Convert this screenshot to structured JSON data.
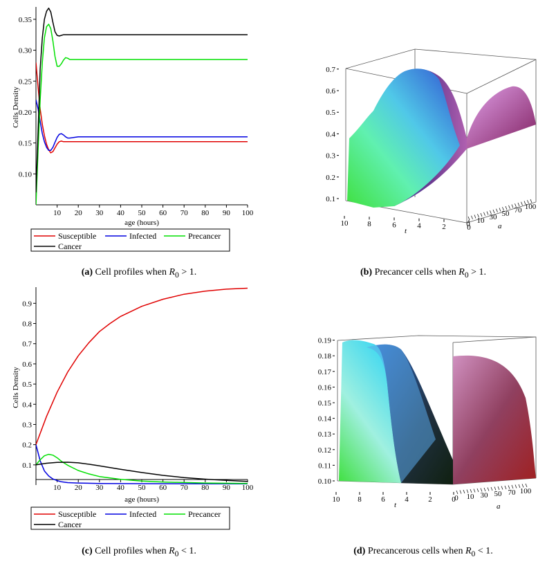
{
  "chart_data": [
    {
      "id": "a",
      "type": "line",
      "xlabel": "age (hours)",
      "ylabel": "Cells Density",
      "xlim": [
        0,
        100
      ],
      "ylim": [
        0.05,
        0.37
      ],
      "xticks": [
        "10",
        "20",
        "30",
        "40",
        "50",
        "60",
        "70",
        "80",
        "90",
        "100"
      ],
      "yticks": [
        "0.10",
        "0.15",
        "0.20",
        "0.25",
        "0.30",
        "0.35"
      ],
      "ytick_values": [
        0.1,
        0.15,
        0.2,
        0.25,
        0.3,
        0.35
      ],
      "xtick_values": [
        10,
        20,
        30,
        40,
        50,
        60,
        70,
        80,
        90,
        100
      ],
      "series": [
        {
          "name": "Susceptible",
          "color": "#e00000",
          "x": [
            0,
            1,
            2,
            3,
            4,
            5,
            6,
            7,
            8,
            9,
            10,
            11,
            12,
            13,
            15,
            20,
            30,
            50,
            100
          ],
          "y": [
            0.28,
            0.24,
            0.205,
            0.18,
            0.162,
            0.148,
            0.139,
            0.134,
            0.136,
            0.142,
            0.148,
            0.152,
            0.153,
            0.152,
            0.152,
            0.152,
            0.152,
            0.152,
            0.152
          ]
        },
        {
          "name": "Infected",
          "color": "#0000e0",
          "x": [
            0,
            1,
            2,
            3,
            4,
            5,
            6,
            7,
            8,
            9,
            10,
            11,
            12,
            13,
            14,
            15,
            16,
            18,
            20,
            25,
            100
          ],
          "y": [
            0.22,
            0.205,
            0.185,
            0.165,
            0.152,
            0.143,
            0.138,
            0.138,
            0.143,
            0.151,
            0.159,
            0.164,
            0.165,
            0.163,
            0.16,
            0.158,
            0.158,
            0.159,
            0.16,
            0.16,
            0.16
          ]
        },
        {
          "name": "Precancer",
          "color": "#00e000",
          "x": [
            0,
            1,
            2,
            3,
            4,
            5,
            6,
            7,
            8,
            9,
            10,
            11,
            12,
            13,
            14,
            15,
            16,
            18,
            20,
            25,
            100
          ],
          "y": [
            0.05,
            0.14,
            0.22,
            0.28,
            0.32,
            0.338,
            0.342,
            0.335,
            0.315,
            0.29,
            0.274,
            0.274,
            0.278,
            0.284,
            0.288,
            0.287,
            0.285,
            0.285,
            0.285,
            0.285,
            0.285
          ]
        },
        {
          "name": "Cancer",
          "color": "#000000",
          "x": [
            0,
            1,
            2,
            3,
            4,
            5,
            6,
            7,
            8,
            9,
            10,
            11,
            12,
            13,
            15,
            20,
            100
          ],
          "y": [
            0.07,
            0.17,
            0.27,
            0.32,
            0.35,
            0.363,
            0.368,
            0.362,
            0.345,
            0.33,
            0.324,
            0.323,
            0.324,
            0.325,
            0.325,
            0.325,
            0.325
          ]
        }
      ],
      "legend": [
        "Susceptible",
        "Infected",
        "Precancer",
        "Cancer"
      ],
      "caption": {
        "label": "(a)",
        "text": "Cell profiles when",
        "sym": "R",
        "sub": "0",
        "rel": "> 1."
      }
    },
    {
      "id": "b",
      "type": "surface",
      "xlabel": "t",
      "ylabel": "a",
      "zticks": [
        "0.1",
        "0.2",
        "0.3",
        "0.4",
        "0.5",
        "0.6",
        "0.7"
      ],
      "tticks": [
        "10",
        "8",
        "6",
        "4",
        "2",
        "0"
      ],
      "aticks": [
        "0",
        "10",
        "30",
        "50",
        "70",
        "100"
      ],
      "caption": {
        "label": "(b)",
        "text": "Precancer cells when",
        "sym": "R",
        "sub": "0",
        "rel": "> 1."
      }
    },
    {
      "id": "c",
      "type": "line",
      "xlabel": "age (hours)",
      "ylabel": "Cells Density",
      "xlim": [
        0,
        100
      ],
      "ylim": [
        0.0,
        0.98
      ],
      "xticks": [
        "10",
        "20",
        "30",
        "40",
        "50",
        "60",
        "70",
        "80",
        "90",
        "100"
      ],
      "yticks": [
        "0.1",
        "0.2",
        "0.3",
        "0.4",
        "0.5",
        "0.6",
        "0.7",
        "0.8",
        "0.9"
      ],
      "ytick_values": [
        0.1,
        0.2,
        0.3,
        0.4,
        0.5,
        0.6,
        0.7,
        0.8,
        0.9
      ],
      "xtick_values": [
        10,
        20,
        30,
        40,
        50,
        60,
        70,
        80,
        90,
        100
      ],
      "series": [
        {
          "name": "Susceptible",
          "color": "#e00000",
          "x": [
            0,
            5,
            10,
            15,
            20,
            25,
            30,
            35,
            40,
            50,
            60,
            70,
            80,
            90,
            100
          ],
          "y": [
            0.2,
            0.34,
            0.46,
            0.56,
            0.64,
            0.705,
            0.76,
            0.8,
            0.835,
            0.885,
            0.92,
            0.945,
            0.96,
            0.97,
            0.975
          ]
        },
        {
          "name": "Infected",
          "color": "#0000e0",
          "x": [
            0,
            2,
            4,
            6,
            8,
            10,
            12,
            15,
            20,
            30,
            50,
            100
          ],
          "y": [
            0.2,
            0.12,
            0.07,
            0.045,
            0.03,
            0.022,
            0.016,
            0.012,
            0.01,
            0.008,
            0.007,
            0.006
          ]
        },
        {
          "name": "Precancer",
          "color": "#00e000",
          "x": [
            0,
            2,
            4,
            6,
            8,
            10,
            12,
            15,
            20,
            25,
            30,
            40,
            50,
            60,
            80,
            100
          ],
          "y": [
            0.1,
            0.125,
            0.145,
            0.152,
            0.148,
            0.135,
            0.118,
            0.098,
            0.072,
            0.055,
            0.042,
            0.028,
            0.02,
            0.015,
            0.01,
            0.008
          ]
        },
        {
          "name": "Cancer",
          "color": "#000000",
          "x": [
            0,
            5,
            10,
            15,
            20,
            25,
            30,
            40,
            50,
            60,
            70,
            80,
            90,
            100
          ],
          "y": [
            0.1,
            0.108,
            0.112,
            0.113,
            0.11,
            0.103,
            0.095,
            0.078,
            0.062,
            0.048,
            0.037,
            0.029,
            0.023,
            0.018
          ]
        }
      ],
      "legend": [
        "Susceptible",
        "Infected",
        "Precancer",
        "Cancer"
      ],
      "caption": {
        "label": "(c)",
        "text": "Cell profiles when",
        "sym": "R",
        "sub": "0",
        "rel": "< 1."
      }
    },
    {
      "id": "d",
      "type": "surface",
      "xlabel": "t",
      "ylabel": "a",
      "zticks": [
        "0.10",
        "0.11",
        "0.12",
        "0.13",
        "0.14",
        "0.15",
        "0.16",
        "0.17",
        "0.18",
        "0.19"
      ],
      "tticks": [
        "10",
        "8",
        "6",
        "4",
        "2",
        "0"
      ],
      "aticks": [
        "0",
        "10",
        "30",
        "50",
        "70",
        "100"
      ],
      "caption": {
        "label": "(d)",
        "text": "Precancerous cells when",
        "sym": "R",
        "sub": "0",
        "rel": "< 1."
      }
    }
  ]
}
